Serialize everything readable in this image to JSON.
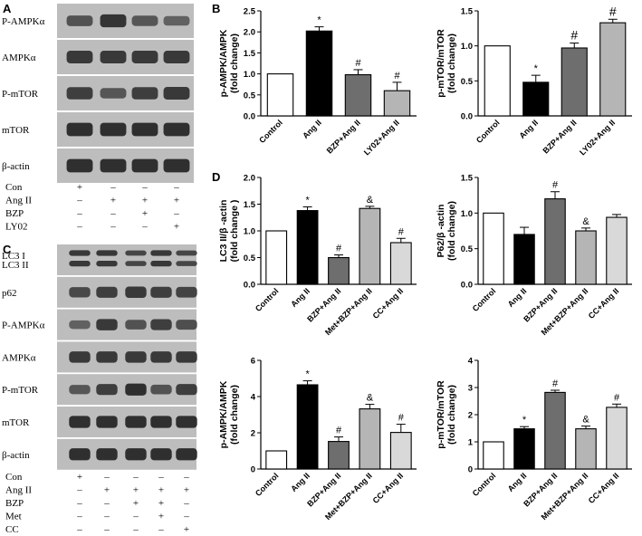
{
  "blot_panels": [
    {
      "letter": "A",
      "rows": [
        {
          "label": "P-AMPKα",
          "intensity": [
            0.6,
            0.9,
            0.55,
            0.45
          ]
        },
        {
          "label": "AMPKα",
          "intensity": [
            0.85,
            0.85,
            0.85,
            0.85
          ]
        },
        {
          "label": "P-mTOR",
          "intensity": [
            0.8,
            0.55,
            0.8,
            0.85
          ]
        },
        {
          "label": "mTOR",
          "intensity": [
            0.95,
            0.95,
            0.95,
            0.95
          ]
        },
        {
          "label": "β-actin",
          "intensity": [
            0.95,
            0.95,
            0.95,
            0.95
          ]
        }
      ],
      "treatments": [
        {
          "label": "Con",
          "signs": [
            "+",
            "–",
            "–",
            "–"
          ]
        },
        {
          "label": "Ang II",
          "signs": [
            "–",
            "+",
            "+",
            "+"
          ]
        },
        {
          "label": "BZP",
          "signs": [
            "–",
            "–",
            "+",
            "–"
          ]
        },
        {
          "label": "LY02",
          "signs": [
            "–",
            "–",
            "–",
            "+"
          ]
        }
      ]
    },
    {
      "letter": "C",
      "rows": [
        {
          "label": "LC3 I",
          "label2": "LC3 II",
          "intensity": [
            0.85,
            0.85,
            0.7,
            0.85,
            0.7
          ]
        },
        {
          "label": "p62",
          "intensity": [
            0.7,
            0.8,
            0.85,
            0.8,
            0.75
          ]
        },
        {
          "label": "P-AMPKα",
          "intensity": [
            0.45,
            0.85,
            0.6,
            0.8,
            0.65
          ]
        },
        {
          "label": "AMPKα",
          "intensity": [
            0.85,
            0.85,
            0.85,
            0.85,
            0.85
          ]
        },
        {
          "label": "P-mTOR",
          "intensity": [
            0.55,
            0.8,
            0.95,
            0.6,
            0.8
          ]
        },
        {
          "label": "mTOR",
          "intensity": [
            0.95,
            0.95,
            0.95,
            0.95,
            0.95
          ]
        },
        {
          "label": "β-actin",
          "intensity": [
            0.95,
            0.95,
            0.95,
            0.95,
            0.95
          ]
        }
      ],
      "treatments": [
        {
          "label": "Con",
          "signs": [
            "+",
            "–",
            "–",
            "–",
            "–"
          ]
        },
        {
          "label": "Ang II",
          "signs": [
            "–",
            "+",
            "+",
            "+",
            "+"
          ]
        },
        {
          "label": "BZP",
          "signs": [
            "–",
            "–",
            "+",
            "+",
            "–"
          ]
        },
        {
          "label": "Met",
          "signs": [
            "–",
            "–",
            "–",
            "+",
            "–"
          ]
        },
        {
          "label": "CC",
          "signs": [
            "–",
            "–",
            "–",
            "–",
            "+"
          ]
        }
      ]
    }
  ],
  "colors": {
    "control": "#ffffff",
    "angii": "#000000",
    "bzp": "#6e6e6e",
    "fourth": "#b5b5b5",
    "fifth": "#d9d9d9",
    "blot_bg": "#bdbdbd",
    "band": "#222222"
  },
  "chart_data": [
    {
      "panel": "B",
      "type": "bar",
      "ylabel": "p-AMPK/AMPK\n(fold change)",
      "categories": [
        "Control",
        "Ang II",
        "BZP+Ang II",
        "LY02+Ang II"
      ],
      "values": [
        1.0,
        2.02,
        0.98,
        0.6
      ],
      "errors": [
        0,
        0.1,
        0.12,
        0.2
      ],
      "annotations": [
        "",
        "*",
        "#",
        "#"
      ],
      "ylim": [
        0,
        2.5
      ],
      "yticks": [
        "0.0",
        "0.5",
        "1.0",
        "1.5",
        "2.0",
        "2.5"
      ]
    },
    {
      "type": "bar",
      "ylabel": "p-mTOR/mTOR\n(fold change)",
      "categories": [
        "Control",
        "Ang II",
        "BZP+Ang II",
        "LY02+Ang II"
      ],
      "values": [
        1.0,
        0.48,
        0.97,
        1.33
      ],
      "errors": [
        0,
        0.1,
        0.07,
        0.05
      ],
      "annotations": [
        "",
        "*",
        "#",
        "#"
      ],
      "ylim": [
        0,
        1.5
      ],
      "yticks": [
        "0.0",
        "0.5",
        "1.0",
        "1.5"
      ]
    },
    {
      "panel": "D",
      "type": "bar",
      "ylabel": "LC3 II/β -actin\n(fold change )",
      "categories": [
        "Control",
        "Ang II",
        "BZP+Ang II",
        "Met+BZP+Ang II",
        "CC+Ang II"
      ],
      "values": [
        1.0,
        1.38,
        0.5,
        1.42,
        0.78
      ],
      "errors": [
        0,
        0.07,
        0.05,
        0.04,
        0.08
      ],
      "annotations": [
        "",
        "*",
        "#",
        "&",
        "#"
      ],
      "ylim": [
        0,
        2.0
      ],
      "yticks": [
        "0.0",
        "0.5",
        "1.0",
        "1.5",
        "2.0"
      ]
    },
    {
      "type": "bar",
      "ylabel": "P62/β -actin\n(fold change)",
      "categories": [
        "Control",
        "Ang II",
        "BZP+Ang II",
        "Met+BZP+Ang II",
        "CC+Ang II"
      ],
      "values": [
        1.0,
        0.7,
        1.2,
        0.75,
        0.94
      ],
      "errors": [
        0,
        0.1,
        0.1,
        0.04,
        0.04
      ],
      "annotations": [
        "",
        "",
        "#",
        "&",
        ""
      ],
      "ylim": [
        0,
        1.5
      ],
      "yticks": [
        "0.0",
        "0.5",
        "1.0",
        "1.5"
      ]
    },
    {
      "type": "bar",
      "ylabel": "p-AMPK/AMPK\n(fold change)",
      "categories": [
        "Control",
        "Ang II",
        "BZP+Ang II",
        "Met+BZP+Ang II",
        "CC+Ang II"
      ],
      "values": [
        1.0,
        4.65,
        1.52,
        3.32,
        2.02
      ],
      "errors": [
        0,
        0.22,
        0.25,
        0.25,
        0.45
      ],
      "annotations": [
        "",
        "*",
        "#",
        "&",
        "#"
      ],
      "ylim": [
        0,
        6
      ],
      "yticks": [
        "0",
        "2",
        "4",
        "6"
      ]
    },
    {
      "type": "bar",
      "ylabel": "p-mTOR/mTOR\n(fold change)",
      "categories": [
        "Control",
        "Ang II",
        "BZP+Ang II",
        "Met+BZP+Ang II",
        "CC+Ang II"
      ],
      "values": [
        1.0,
        1.48,
        2.82,
        1.48,
        2.27
      ],
      "errors": [
        0,
        0.08,
        0.08,
        0.1,
        0.12
      ],
      "annotations": [
        "",
        "*",
        "#",
        "&",
        "#"
      ],
      "ylim": [
        0,
        4
      ],
      "yticks": [
        "0",
        "1",
        "2",
        "3",
        "4"
      ]
    }
  ]
}
